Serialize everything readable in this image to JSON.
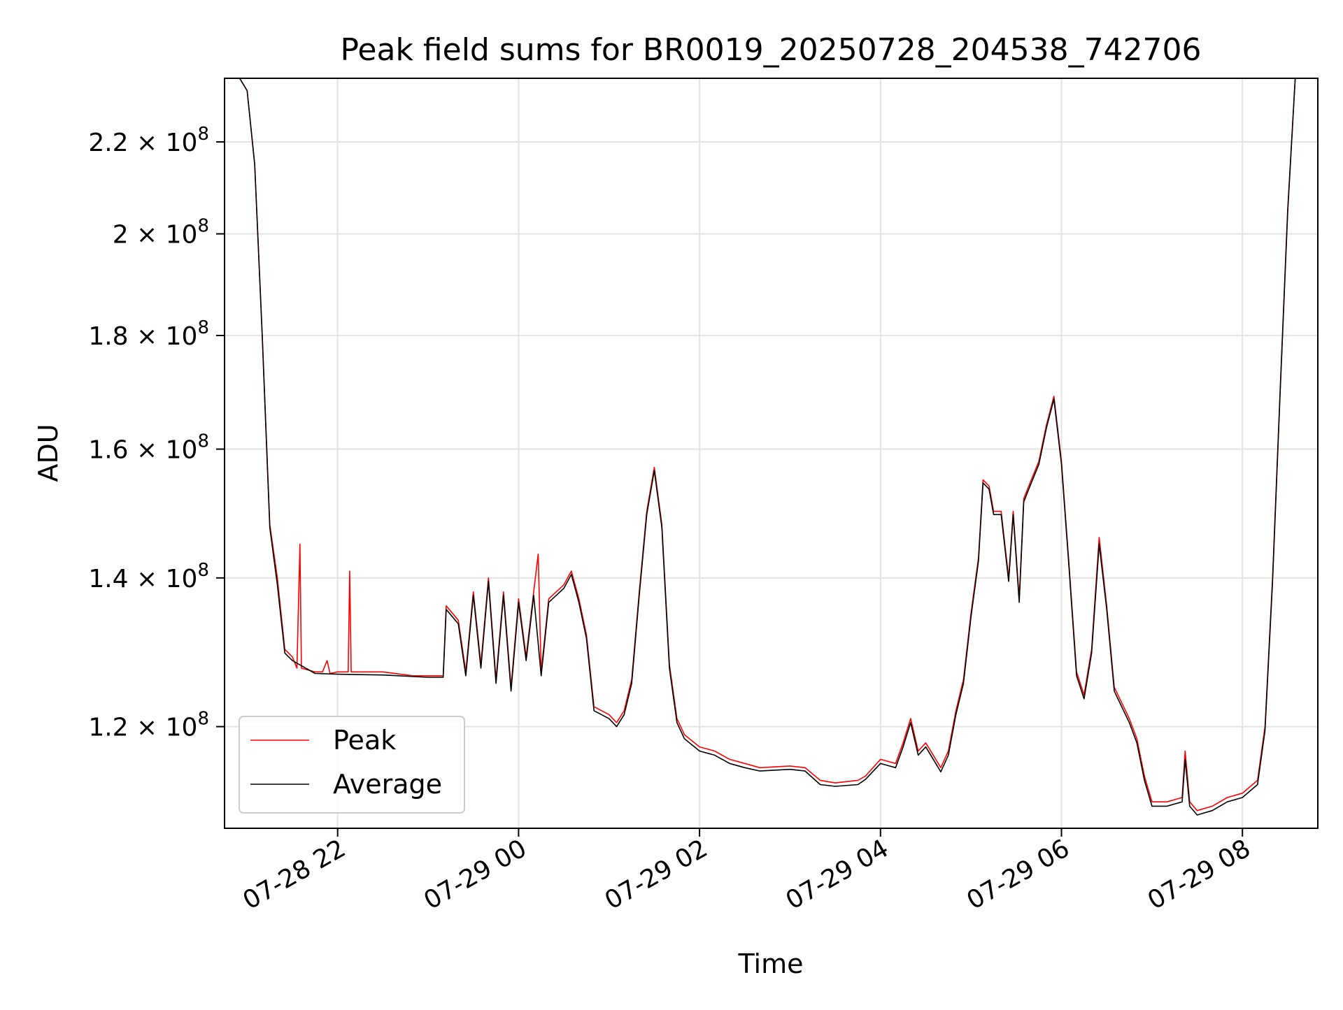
{
  "chart_data": {
    "type": "line",
    "title": "Peak field sums for BR0019_20250728_204538_742706",
    "xlabel": "Time",
    "ylabel": "ADU",
    "yscale": "log",
    "ylim": [
      108000000,
      235000000
    ],
    "xlim": [
      "2025-07-28 20:45",
      "2025-07-29 08:50"
    ],
    "grid": true,
    "legend_position": "lower-left",
    "x_ticks": [
      {
        "value": "2025-07-28 22:00",
        "label": "07-28 22"
      },
      {
        "value": "2025-07-29 00:00",
        "label": "07-29 00"
      },
      {
        "value": "2025-07-29 02:00",
        "label": "07-29 02"
      },
      {
        "value": "2025-07-29 04:00",
        "label": "07-29 04"
      },
      {
        "value": "2025-07-29 06:00",
        "label": "07-29 06"
      },
      {
        "value": "2025-07-29 08:00",
        "label": "07-29 08"
      }
    ],
    "y_ticks": [
      {
        "value": 120000000,
        "mantissa": "1.2",
        "exponent": "8"
      },
      {
        "value": 140000000,
        "mantissa": "1.4",
        "exponent": "8"
      },
      {
        "value": 160000000,
        "mantissa": "1.6",
        "exponent": "8"
      },
      {
        "value": 180000000,
        "mantissa": "1.8",
        "exponent": "8"
      },
      {
        "value": 200000000,
        "mantissa": "2",
        "exponent": "8"
      },
      {
        "value": 220000000,
        "mantissa": "2.2",
        "exponent": "8"
      }
    ],
    "series": [
      {
        "name": "Peak",
        "color": "#ff0000",
        "points": [
          [
            "2025-07-28 20:45",
            235000000
          ],
          [
            "2025-07-28 20:55",
            235000000
          ],
          [
            "2025-07-28 21:00",
            232000000
          ],
          [
            "2025-07-28 21:05",
            215000000
          ],
          [
            "2025-07-28 21:10",
            180000000
          ],
          [
            "2025-07-28 21:15",
            148000000
          ],
          [
            "2025-07-28 21:20",
            140000000
          ],
          [
            "2025-07-28 21:25",
            130000000
          ],
          [
            "2025-07-28 21:30",
            129000000
          ],
          [
            "2025-07-28 21:33",
            127500000
          ],
          [
            "2025-07-28 21:35",
            145000000
          ],
          [
            "2025-07-28 21:36",
            127500000
          ],
          [
            "2025-07-28 21:45",
            127000000
          ],
          [
            "2025-07-28 21:50",
            127000000
          ],
          [
            "2025-07-28 21:53",
            128500000
          ],
          [
            "2025-07-28 21:55",
            126800000
          ],
          [
            "2025-07-28 22:00",
            127000000
          ],
          [
            "2025-07-28 22:07",
            127000000
          ],
          [
            "2025-07-28 22:08",
            141000000
          ],
          [
            "2025-07-28 22:09",
            127000000
          ],
          [
            "2025-07-28 22:30",
            127000000
          ],
          [
            "2025-07-28 22:50",
            126500000
          ],
          [
            "2025-07-28 23:00",
            126500000
          ],
          [
            "2025-07-28 23:10",
            126500000
          ],
          [
            "2025-07-28 23:12",
            136000000
          ],
          [
            "2025-07-28 23:20",
            134000000
          ],
          [
            "2025-07-28 23:25",
            127000000
          ],
          [
            "2025-07-28 23:30",
            138000000
          ],
          [
            "2025-07-28 23:35",
            128000000
          ],
          [
            "2025-07-28 23:40",
            140000000
          ],
          [
            "2025-07-28 23:45",
            126000000
          ],
          [
            "2025-07-28 23:50",
            138000000
          ],
          [
            "2025-07-28 23:55",
            125000000
          ],
          [
            "2025-07-29 00:00",
            137000000
          ],
          [
            "2025-07-29 00:05",
            129000000
          ],
          [
            "2025-07-29 00:10",
            138000000
          ],
          [
            "2025-07-29 00:13",
            143500000
          ],
          [
            "2025-07-29 00:15",
            127000000
          ],
          [
            "2025-07-29 00:20",
            137000000
          ],
          [
            "2025-07-29 00:30",
            139000000
          ],
          [
            "2025-07-29 00:35",
            141000000
          ],
          [
            "2025-07-29 00:40",
            137000000
          ],
          [
            "2025-07-29 00:45",
            132000000
          ],
          [
            "2025-07-29 00:50",
            122500000
          ],
          [
            "2025-07-29 01:00",
            121500000
          ],
          [
            "2025-07-29 01:05",
            120500000
          ],
          [
            "2025-07-29 01:10",
            122000000
          ],
          [
            "2025-07-29 01:15",
            126000000
          ],
          [
            "2025-07-29 01:20",
            138000000
          ],
          [
            "2025-07-29 01:25",
            150000000
          ],
          [
            "2025-07-29 01:30",
            157000000
          ],
          [
            "2025-07-29 01:35",
            148000000
          ],
          [
            "2025-07-29 01:40",
            128000000
          ],
          [
            "2025-07-29 01:45",
            121000000
          ],
          [
            "2025-07-29 01:50",
            119000000
          ],
          [
            "2025-07-29 02:00",
            117500000
          ],
          [
            "2025-07-29 02:10",
            117000000
          ],
          [
            "2025-07-29 02:20",
            116000000
          ],
          [
            "2025-07-29 02:30",
            115500000
          ],
          [
            "2025-07-29 02:40",
            115000000
          ],
          [
            "2025-07-29 03:00",
            115200000
          ],
          [
            "2025-07-29 03:10",
            115000000
          ],
          [
            "2025-07-29 03:20",
            113500000
          ],
          [
            "2025-07-29 03:30",
            113200000
          ],
          [
            "2025-07-29 03:45",
            113500000
          ],
          [
            "2025-07-29 03:50",
            114000000
          ],
          [
            "2025-07-29 04:00",
            116000000
          ],
          [
            "2025-07-29 04:10",
            115500000
          ],
          [
            "2025-07-29 04:15",
            118000000
          ],
          [
            "2025-07-29 04:20",
            121000000
          ],
          [
            "2025-07-29 04:25",
            117000000
          ],
          [
            "2025-07-29 04:30",
            118000000
          ],
          [
            "2025-07-29 04:40",
            115000000
          ],
          [
            "2025-07-29 04:45",
            117000000
          ],
          [
            "2025-07-29 04:50",
            122000000
          ],
          [
            "2025-07-29 04:55",
            126000000
          ],
          [
            "2025-07-29 05:00",
            135000000
          ],
          [
            "2025-07-29 05:05",
            143000000
          ],
          [
            "2025-07-29 05:08",
            155000000
          ],
          [
            "2025-07-29 05:12",
            154000000
          ],
          [
            "2025-07-29 05:15",
            150000000
          ],
          [
            "2025-07-29 05:20",
            150000000
          ],
          [
            "2025-07-29 05:25",
            140000000
          ],
          [
            "2025-07-29 05:28",
            150000000
          ],
          [
            "2025-07-29 05:32",
            137000000
          ],
          [
            "2025-07-29 05:35",
            152000000
          ],
          [
            "2025-07-29 05:40",
            155000000
          ],
          [
            "2025-07-29 05:45",
            158000000
          ],
          [
            "2025-07-29 05:50",
            164000000
          ],
          [
            "2025-07-29 05:55",
            169000000
          ],
          [
            "2025-07-29 06:00",
            158000000
          ],
          [
            "2025-07-29 06:05",
            142000000
          ],
          [
            "2025-07-29 06:10",
            127000000
          ],
          [
            "2025-07-29 06:15",
            124000000
          ],
          [
            "2025-07-29 06:20",
            130000000
          ],
          [
            "2025-07-29 06:25",
            146000000
          ],
          [
            "2025-07-29 06:30",
            136000000
          ],
          [
            "2025-07-29 06:35",
            125000000
          ],
          [
            "2025-07-29 06:45",
            121000000
          ],
          [
            "2025-07-29 06:50",
            118500000
          ],
          [
            "2025-07-29 06:55",
            114000000
          ],
          [
            "2025-07-29 07:00",
            111000000
          ],
          [
            "2025-07-29 07:10",
            111000000
          ],
          [
            "2025-07-29 07:20",
            111500000
          ],
          [
            "2025-07-29 07:22",
            117000000
          ],
          [
            "2025-07-29 07:25",
            111000000
          ],
          [
            "2025-07-29 07:30",
            110000000
          ],
          [
            "2025-07-29 07:40",
            110500000
          ],
          [
            "2025-07-29 07:50",
            111500000
          ],
          [
            "2025-07-29 08:00",
            112000000
          ],
          [
            "2025-07-29 08:10",
            113500000
          ],
          [
            "2025-07-29 08:15",
            120000000
          ],
          [
            "2025-07-29 08:20",
            140000000
          ],
          [
            "2025-07-29 08:25",
            170000000
          ],
          [
            "2025-07-29 08:30",
            205000000
          ],
          [
            "2025-07-29 08:35",
            235000000
          ]
        ]
      },
      {
        "name": "Average",
        "color": "#000000",
        "points": [
          [
            "2025-07-28 20:45",
            235000000
          ],
          [
            "2025-07-28 20:55",
            235000000
          ],
          [
            "2025-07-28 21:00",
            232000000
          ],
          [
            "2025-07-28 21:05",
            215000000
          ],
          [
            "2025-07-28 21:10",
            180000000
          ],
          [
            "2025-07-28 21:15",
            147500000
          ],
          [
            "2025-07-28 21:20",
            139000000
          ],
          [
            "2025-07-28 21:25",
            129500000
          ],
          [
            "2025-07-28 21:30",
            128500000
          ],
          [
            "2025-07-28 21:45",
            126800000
          ],
          [
            "2025-07-28 22:00",
            126700000
          ],
          [
            "2025-07-28 22:30",
            126600000
          ],
          [
            "2025-07-28 23:00",
            126300000
          ],
          [
            "2025-07-28 23:10",
            126300000
          ],
          [
            "2025-07-28 23:12",
            135500000
          ],
          [
            "2025-07-28 23:20",
            133500000
          ],
          [
            "2025-07-28 23:25",
            126500000
          ],
          [
            "2025-07-28 23:30",
            137500000
          ],
          [
            "2025-07-28 23:35",
            127500000
          ],
          [
            "2025-07-28 23:40",
            139500000
          ],
          [
            "2025-07-28 23:45",
            125500000
          ],
          [
            "2025-07-28 23:50",
            137500000
          ],
          [
            "2025-07-28 23:55",
            124500000
          ],
          [
            "2025-07-29 00:00",
            136500000
          ],
          [
            "2025-07-29 00:05",
            128500000
          ],
          [
            "2025-07-29 00:10",
            137500000
          ],
          [
            "2025-07-29 00:15",
            126500000
          ],
          [
            "2025-07-29 00:20",
            136500000
          ],
          [
            "2025-07-29 00:30",
            138500000
          ],
          [
            "2025-07-29 00:35",
            140500000
          ],
          [
            "2025-07-29 00:40",
            136500000
          ],
          [
            "2025-07-29 00:45",
            131500000
          ],
          [
            "2025-07-29 00:50",
            122000000
          ],
          [
            "2025-07-29 01:00",
            121000000
          ],
          [
            "2025-07-29 01:05",
            120000000
          ],
          [
            "2025-07-29 01:10",
            121500000
          ],
          [
            "2025-07-29 01:15",
            125500000
          ],
          [
            "2025-07-29 01:20",
            137500000
          ],
          [
            "2025-07-29 01:25",
            149500000
          ],
          [
            "2025-07-29 01:30",
            156500000
          ],
          [
            "2025-07-29 01:35",
            147500000
          ],
          [
            "2025-07-29 01:40",
            127500000
          ],
          [
            "2025-07-29 01:45",
            120500000
          ],
          [
            "2025-07-29 01:50",
            118500000
          ],
          [
            "2025-07-29 02:00",
            117000000
          ],
          [
            "2025-07-29 02:10",
            116500000
          ],
          [
            "2025-07-29 02:20",
            115500000
          ],
          [
            "2025-07-29 02:30",
            115000000
          ],
          [
            "2025-07-29 02:40",
            114600000
          ],
          [
            "2025-07-29 03:00",
            114800000
          ],
          [
            "2025-07-29 03:10",
            114600000
          ],
          [
            "2025-07-29 03:20",
            113000000
          ],
          [
            "2025-07-29 03:30",
            112800000
          ],
          [
            "2025-07-29 03:45",
            113000000
          ],
          [
            "2025-07-29 03:50",
            113600000
          ],
          [
            "2025-07-29 04:00",
            115500000
          ],
          [
            "2025-07-29 04:10",
            115000000
          ],
          [
            "2025-07-29 04:15",
            117500000
          ],
          [
            "2025-07-29 04:20",
            120500000
          ],
          [
            "2025-07-29 04:25",
            116500000
          ],
          [
            "2025-07-29 04:30",
            117500000
          ],
          [
            "2025-07-29 04:40",
            114500000
          ],
          [
            "2025-07-29 04:45",
            116500000
          ],
          [
            "2025-07-29 04:50",
            121500000
          ],
          [
            "2025-07-29 04:55",
            125500000
          ],
          [
            "2025-07-29 05:00",
            134500000
          ],
          [
            "2025-07-29 05:05",
            142500000
          ],
          [
            "2025-07-29 05:08",
            154500000
          ],
          [
            "2025-07-29 05:12",
            153500000
          ],
          [
            "2025-07-29 05:15",
            149500000
          ],
          [
            "2025-07-29 05:20",
            149500000
          ],
          [
            "2025-07-29 05:25",
            139500000
          ],
          [
            "2025-07-29 05:28",
            149500000
          ],
          [
            "2025-07-29 05:32",
            136500000
          ],
          [
            "2025-07-29 05:35",
            151500000
          ],
          [
            "2025-07-29 05:40",
            154500000
          ],
          [
            "2025-07-29 05:45",
            157500000
          ],
          [
            "2025-07-29 05:50",
            163500000
          ],
          [
            "2025-07-29 05:55",
            168500000
          ],
          [
            "2025-07-29 06:00",
            157500000
          ],
          [
            "2025-07-29 06:05",
            141500000
          ],
          [
            "2025-07-29 06:10",
            126500000
          ],
          [
            "2025-07-29 06:15",
            123500000
          ],
          [
            "2025-07-29 06:20",
            129500000
          ],
          [
            "2025-07-29 06:25",
            145000000
          ],
          [
            "2025-07-29 06:30",
            135500000
          ],
          [
            "2025-07-29 06:35",
            124500000
          ],
          [
            "2025-07-29 06:45",
            120500000
          ],
          [
            "2025-07-29 06:50",
            118000000
          ],
          [
            "2025-07-29 06:55",
            113500000
          ],
          [
            "2025-07-29 07:00",
            110500000
          ],
          [
            "2025-07-29 07:10",
            110500000
          ],
          [
            "2025-07-29 07:20",
            111000000
          ],
          [
            "2025-07-29 07:22",
            116000000
          ],
          [
            "2025-07-29 07:25",
            110500000
          ],
          [
            "2025-07-29 07:30",
            109500000
          ],
          [
            "2025-07-29 07:40",
            110000000
          ],
          [
            "2025-07-29 07:50",
            111000000
          ],
          [
            "2025-07-29 08:00",
            111500000
          ],
          [
            "2025-07-29 08:10",
            113000000
          ],
          [
            "2025-07-29 08:15",
            119500000
          ],
          [
            "2025-07-29 08:20",
            139500000
          ],
          [
            "2025-07-29 08:25",
            169500000
          ],
          [
            "2025-07-29 08:30",
            204500000
          ],
          [
            "2025-07-29 08:35",
            235000000
          ]
        ]
      }
    ]
  }
}
